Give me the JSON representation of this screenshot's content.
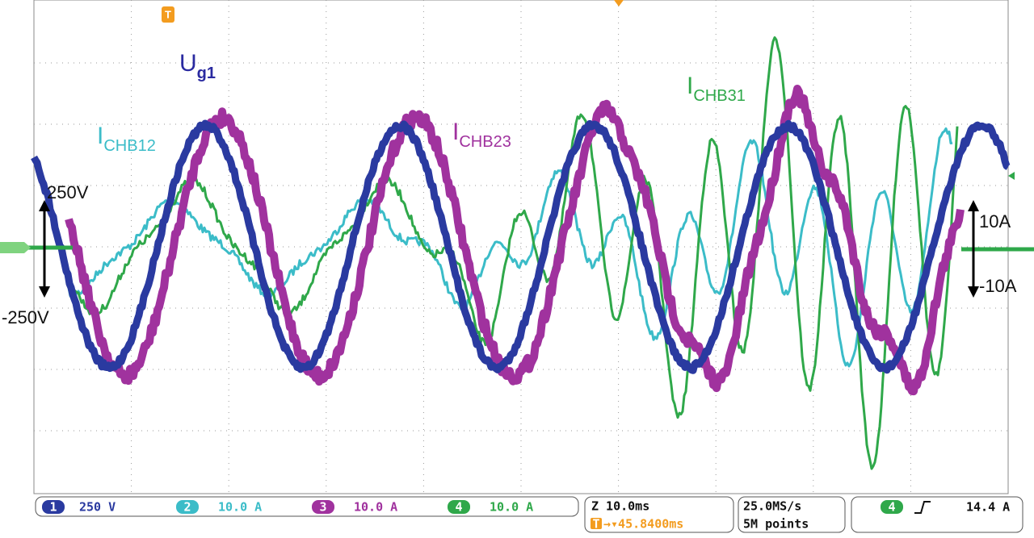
{
  "markers": {
    "trigger_top": "T"
  },
  "labels": {
    "ug1": {
      "main": "U",
      "sub": "g1"
    },
    "ichb12": {
      "main": "I",
      "sub": "CHB12"
    },
    "ichb23": {
      "main": "I",
      "sub": "CHB23"
    },
    "ichb31": {
      "main": "I",
      "sub": "CHB31"
    }
  },
  "scale_labels": {
    "v_pos": "250V",
    "v_neg": "-250V",
    "a_pos": "10A",
    "a_neg": "-10A"
  },
  "status": {
    "channels": [
      {
        "number": "1",
        "scale": "250 V"
      },
      {
        "number": "2",
        "scale": "10.0 A"
      },
      {
        "number": "3",
        "scale": "10.0 A"
      },
      {
        "number": "4",
        "scale": "10.0 A"
      }
    ],
    "timebase": "Z 10.0ms",
    "trigger_icon": "T",
    "trigger_offset": "→▾45.8400ms",
    "sample_rate": "25.0MS/s",
    "record_length": "5M points",
    "trigger_channel": "4",
    "trigger_level": "14.4 A"
  }
}
